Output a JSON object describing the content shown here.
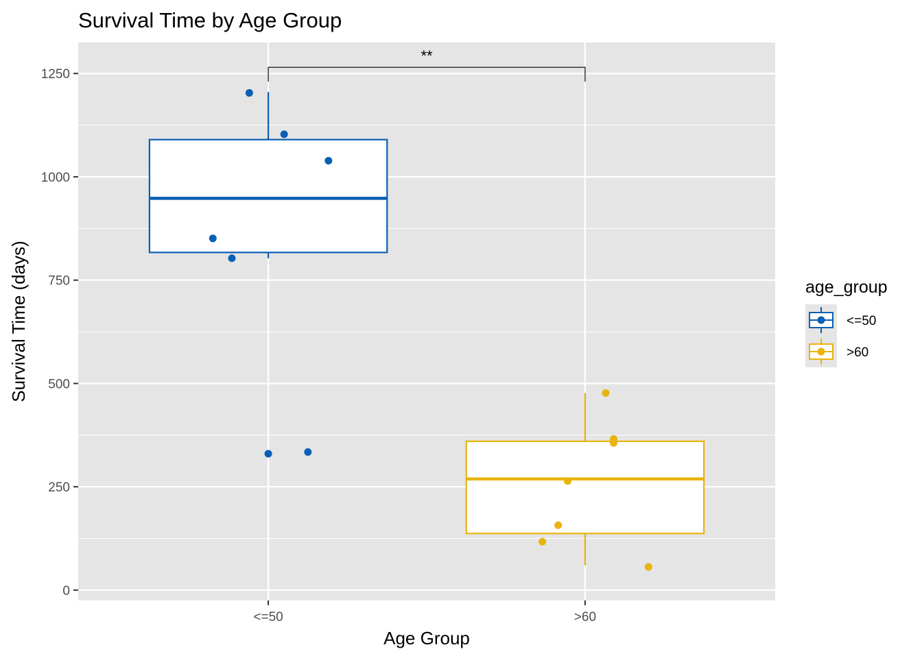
{
  "chart_data": {
    "type": "box",
    "title": "Survival Time by Age Group",
    "xlabel": "Age Group",
    "ylabel": "Survival Time (days)",
    "ylim": [
      -25,
      1325
    ],
    "yticks": [
      0,
      250,
      500,
      750,
      1000,
      1250
    ],
    "grid": true,
    "legend": {
      "title": "age_group",
      "position": "right"
    },
    "categories": [
      "<=50",
      ">60"
    ],
    "series": [
      {
        "name": "<=50",
        "color": "#0a5fb4",
        "box": {
          "lower_whisker": 803,
          "q1": 817,
          "median": 948,
          "q3": 1090,
          "upper_whisker": 1205
        },
        "points": [
          {
            "jitter": -0.06,
            "y": 1203
          },
          {
            "jitter": 0.05,
            "y": 1103
          },
          {
            "jitter": 0.19,
            "y": 1039
          },
          {
            "jitter": -0.175,
            "y": 851
          },
          {
            "jitter": -0.115,
            "y": 803
          },
          {
            "jitter": 0.0,
            "y": 330
          },
          {
            "jitter": 0.125,
            "y": 334
          }
        ]
      },
      {
        "name": ">60",
        "color": "#e8b30c",
        "box": {
          "lower_whisker": 60,
          "q1": 137,
          "median": 269,
          "q3": 360,
          "upper_whisker": 477
        },
        "points": [
          {
            "jitter": 0.065,
            "y": 477
          },
          {
            "jitter": 0.09,
            "y": 366
          },
          {
            "jitter": 0.09,
            "y": 356
          },
          {
            "jitter": -0.055,
            "y": 264
          },
          {
            "jitter": -0.085,
            "y": 157
          },
          {
            "jitter": -0.135,
            "y": 117
          },
          {
            "jitter": 0.2,
            "y": 56
          }
        ]
      }
    ],
    "annotations": [
      {
        "type": "significance-bracket",
        "from": "<=50",
        "to": ">60",
        "label": "**",
        "y": 1265
      }
    ]
  }
}
